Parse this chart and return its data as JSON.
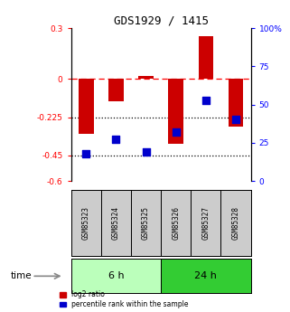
{
  "title": "GDS1929 / 1415",
  "samples": [
    "GSM85323",
    "GSM85324",
    "GSM85325",
    "GSM85326",
    "GSM85327",
    "GSM85328"
  ],
  "log2_ratio": [
    -0.32,
    -0.13,
    0.02,
    -0.38,
    0.25,
    -0.28
  ],
  "percentile_rank_pct": [
    18,
    27,
    19,
    32,
    53,
    40
  ],
  "groups": [
    {
      "label": "6 h",
      "samples": [
        0,
        1,
        2
      ],
      "color": "#bbffbb"
    },
    {
      "label": "24 h",
      "samples": [
        3,
        4,
        5
      ],
      "color": "#33cc33"
    }
  ],
  "ylim_left": [
    -0.6,
    0.3
  ],
  "ylim_right": [
    0,
    100
  ],
  "yticks_left": [
    0.3,
    0.0,
    -0.225,
    -0.45,
    -0.6
  ],
  "ytick_labels_left": [
    "0.3",
    "0",
    "-0.225",
    "-0.45",
    "-0.6"
  ],
  "yticks_right": [
    100,
    75,
    50,
    25,
    0
  ],
  "bar_color": "#cc0000",
  "dot_color": "#0000cc",
  "bar_width": 0.5,
  "dot_size": 40,
  "legend_labels": [
    "log2 ratio",
    "percentile rank within the sample"
  ],
  "legend_colors": [
    "#cc0000",
    "#0000cc"
  ],
  "sample_box_color": "#cccccc",
  "time_label": "time",
  "figsize": [
    3.21,
    3.45
  ],
  "dpi": 100
}
